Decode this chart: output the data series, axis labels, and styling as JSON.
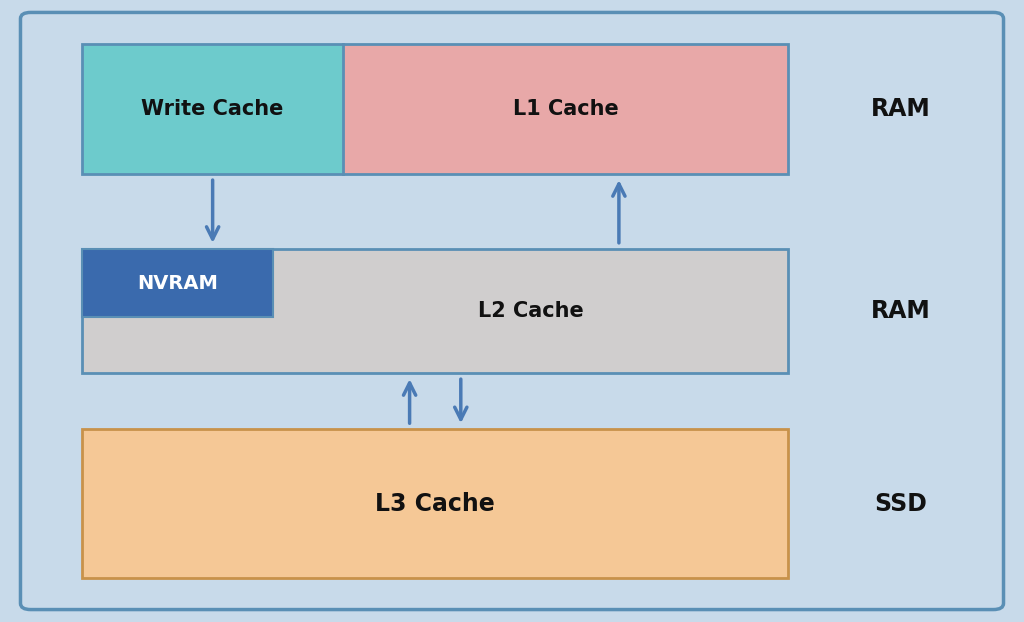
{
  "bg_color": "#c8daea",
  "border_color": "#5a8fb5",
  "write_cache_color": "#6dcbcc",
  "l1_cache_color": "#e8a8a8",
  "nvram_color": "#3a6aad",
  "l2_cache_color": "#d0cece",
  "l3_cache_color": "#f5c896",
  "arrow_color": "#4a7ab5",
  "text_color_dark": "#111111",
  "text_color_white": "#ffffff",
  "write_cache_label": "Write Cache",
  "l1_cache_label": "L1 Cache",
  "nvram_label": "NVRAM",
  "l2_cache_label": "L2 Cache",
  "l3_cache_label": "L3 Cache",
  "ram_label1": "RAM",
  "ram_label2": "RAM",
  "ssd_label": "SSD",
  "font_size_boxes": 15,
  "font_size_side": 17,
  "fig_w": 10.24,
  "fig_h": 6.22,
  "dpi": 100
}
